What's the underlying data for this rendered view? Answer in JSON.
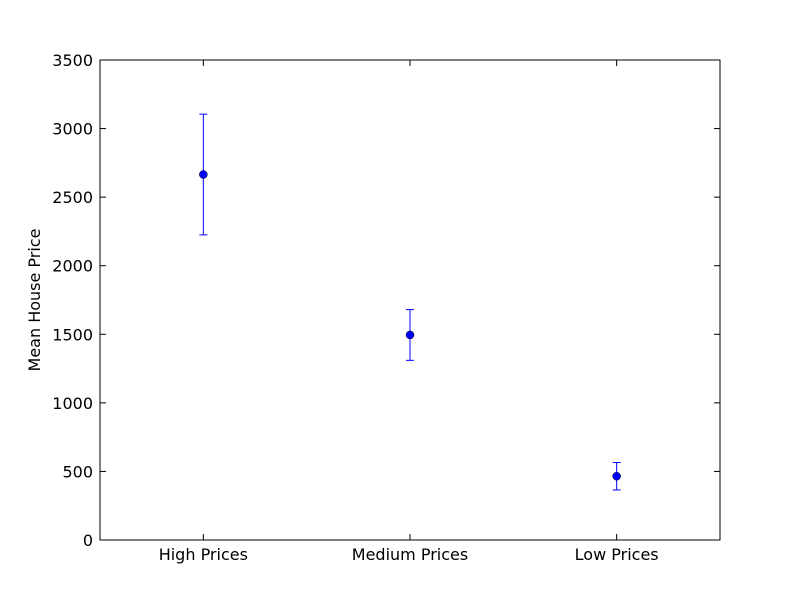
{
  "chart_data": {
    "type": "scatter",
    "title": "",
    "xlabel": "",
    "ylabel": "Mean House Price",
    "categories": [
      "High Prices",
      "Medium Prices",
      "Low Prices"
    ],
    "values": [
      2665,
      1495,
      465
    ],
    "errors": [
      [
        2225,
        3105
      ],
      [
        1310,
        1680
      ],
      [
        365,
        565
      ]
    ],
    "ylim": [
      0,
      3500
    ],
    "yticks": [
      0,
      500,
      1000,
      1500,
      2000,
      2500,
      3000,
      3500
    ],
    "ytick_labels": [
      "0",
      "500",
      "1000",
      "1500",
      "2000",
      "2500",
      "3000",
      "3500"
    ],
    "grid": false,
    "legend": "none",
    "colors": {
      "marker": "#0000ff",
      "errorbar": "#0000ff",
      "axes": "#000000"
    }
  }
}
